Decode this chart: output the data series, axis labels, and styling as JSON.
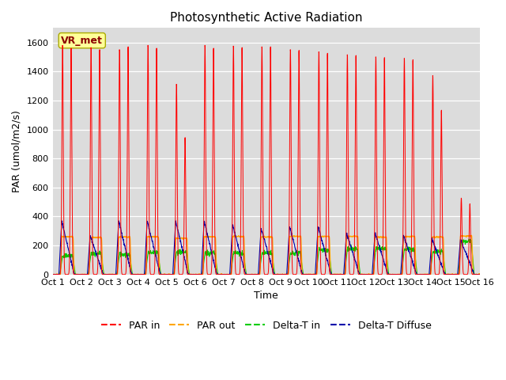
{
  "title": "Photosynthetic Active Radiation",
  "xlabel": "Time",
  "ylabel": "PAR (umol/m2/s)",
  "ylim": [
    0,
    1700
  ],
  "yticks": [
    0,
    200,
    400,
    600,
    800,
    1000,
    1200,
    1400,
    1600
  ],
  "xtick_labels": [
    "Oct 1",
    "Oct 2",
    "Oct 3",
    "Oct 4",
    "Oct 5",
    "Oct 6",
    "Oct 7",
    "Oct 8",
    "Oct 9",
    "Oct 10",
    "Oct 11",
    "Oct 12",
    "Oct 13",
    "Oct 14",
    "Oct 15",
    "Oct 16"
  ],
  "colors": {
    "PAR_in": "#FF0000",
    "PAR_out": "#FFA500",
    "Delta_T_in": "#00CC00",
    "Delta_T_Diffuse": "#0000AA"
  },
  "background_color": "#DCDCDC",
  "fig_bg": "#FFFFFF",
  "legend_labels": [
    "PAR in",
    "PAR out",
    "Delta-T in",
    "Delta-T Diffuse"
  ],
  "watermark_text": "VR_met",
  "watermark_color": "#8B0000",
  "watermark_bg": "#FFFF99",
  "title_fontsize": 11,
  "axis_label_fontsize": 9,
  "tick_label_fontsize": 8,
  "num_days": 15,
  "par_in_peaks": [
    1590,
    1575,
    1560,
    1590,
    1320,
    1590,
    1585,
    1580,
    1560,
    1545,
    1525,
    1510,
    1500,
    1380,
    530
  ],
  "par_in_second_peaks": [
    1570,
    1560,
    1580,
    1570,
    950,
    1570,
    1575,
    1580,
    1555,
    1535,
    1520,
    1505,
    1490,
    1140,
    490
  ],
  "par_out_peaks": [
    260,
    255,
    258,
    260,
    250,
    260,
    262,
    258,
    263,
    262,
    263,
    258,
    262,
    258,
    265
  ],
  "green_day_levels": [
    130,
    145,
    140,
    150,
    155,
    145,
    148,
    148,
    148,
    168,
    178,
    180,
    175,
    155,
    230
  ],
  "blue_peaks": [
    370,
    270,
    370,
    370,
    370,
    370,
    345,
    320,
    330,
    330,
    288,
    288,
    272,
    248,
    242
  ],
  "blue_end_vals": [
    10,
    15,
    20,
    25,
    10,
    15,
    20,
    18,
    15,
    20,
    15,
    18,
    20,
    15,
    30
  ]
}
